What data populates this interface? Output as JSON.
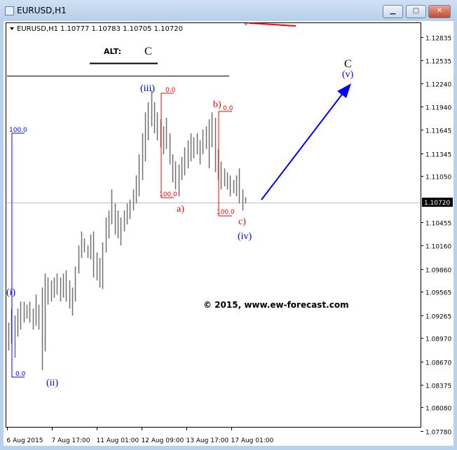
{
  "window": {
    "title": "EURUSD,H1",
    "buttons": {
      "minimize": "▁",
      "maximize": "▢",
      "close": "✕"
    }
  },
  "chart_header": {
    "symbol": "EURUSD,H1",
    "ohlc": "1.10777 1.10783 1.10705 1.10720"
  },
  "alt_label": {
    "text": "ALT:",
    "wave": "C"
  },
  "watermark": "© 2015, www.ew-forecast.com",
  "colors": {
    "bars": "#6e6e6e",
    "wave_blue": "#0000ff",
    "wave_red": "#ff0000",
    "grid_line": "#c0c0c0"
  },
  "chart_data": {
    "type": "bar",
    "ohlc_style": "high-low bars",
    "symbol": "EURUSD",
    "timeframe": "H1",
    "ylim": [
      1.0778,
      1.1306
    ],
    "y_ticks": [
      "1.12835",
      "1.12535",
      "1.12240",
      "1.11940",
      "1.11645",
      "1.11345",
      "1.11050",
      "1.10455",
      "1.10160",
      "1.09860",
      "1.09565",
      "1.09265",
      "1.08970",
      "1.08670",
      "1.08375",
      "1.08080",
      "1.07780"
    ],
    "x_ticks": [
      "6 Aug 2015",
      "7 Aug 17:00",
      "11 Aug 01:00",
      "12 Aug 09:00",
      "13 Aug 17:00",
      "17 Aug 01:00"
    ],
    "current_price": "1.10720",
    "bars": [
      [
        1.0917,
        1.0881
      ],
      [
        1.0935,
        1.089
      ],
      [
        1.0926,
        1.0872
      ],
      [
        1.0935,
        1.0899
      ],
      [
        1.0944,
        1.0908
      ],
      [
        1.0944,
        1.0917
      ],
      [
        1.094,
        1.0922
      ],
      [
        1.0944,
        1.0917
      ],
      [
        1.0935,
        1.0908
      ],
      [
        1.0953,
        1.0913
      ],
      [
        1.094,
        1.0908
      ],
      [
        1.0962,
        1.0856
      ],
      [
        1.098,
        1.088
      ],
      [
        1.0975,
        1.094
      ],
      [
        1.0971,
        1.0944
      ],
      [
        1.0975,
        1.0949
      ],
      [
        1.098,
        1.0953
      ],
      [
        1.0975,
        1.0944
      ],
      [
        1.098,
        1.0949
      ],
      [
        1.0984,
        1.0944
      ],
      [
        1.0971,
        1.0935
      ],
      [
        1.0962,
        1.0926
      ],
      [
        1.0989,
        1.0944
      ],
      [
        1.1016,
        1.098
      ],
      [
        1.1034,
        1.1
      ],
      [
        1.1025,
        1.1007
      ],
      [
        1.1016,
        1.1
      ],
      [
        1.103,
        1.0998
      ],
      [
        1.1034,
        1.0975
      ],
      [
        1.1007,
        1.0971
      ],
      [
        1.1,
        1.0962
      ],
      [
        1.102,
        1.096
      ],
      [
        1.1052,
        1.1007
      ],
      [
        1.1061,
        1.1025
      ],
      [
        1.1088,
        1.1043
      ],
      [
        1.107,
        1.103
      ],
      [
        1.1061,
        1.1025
      ],
      [
        1.1052,
        1.1016
      ],
      [
        1.1061,
        1.1034
      ],
      [
        1.107,
        1.1043
      ],
      [
        1.1075,
        1.105
      ],
      [
        1.1088,
        1.1061
      ],
      [
        1.1106,
        1.107
      ],
      [
        1.1133,
        1.1079
      ],
      [
        1.116,
        1.11
      ],
      [
        1.1187,
        1.1124
      ],
      [
        1.12,
        1.1151
      ],
      [
        1.1215,
        1.1169
      ],
      [
        1.12,
        1.116
      ],
      [
        1.1187,
        1.1151
      ],
      [
        1.1178,
        1.1142
      ],
      [
        1.1169,
        1.1133
      ],
      [
        1.118,
        1.114
      ],
      [
        1.116,
        1.112
      ],
      [
        1.1133,
        1.1097
      ],
      [
        1.1124,
        1.1088
      ],
      [
        1.112,
        1.1079
      ],
      [
        1.113,
        1.11
      ],
      [
        1.1142,
        1.1106
      ],
      [
        1.1151,
        1.1115
      ],
      [
        1.116,
        1.1124
      ],
      [
        1.1155,
        1.1128
      ],
      [
        1.116,
        1.1133
      ],
      [
        1.1151,
        1.112
      ],
      [
        1.1165,
        1.1133
      ],
      [
        1.1169,
        1.114
      ],
      [
        1.1178,
        1.1115
      ],
      [
        1.1187,
        1.1142
      ],
      [
        1.118,
        1.111
      ],
      [
        1.114,
        1.11
      ],
      [
        1.1124,
        1.1088
      ],
      [
        1.1115,
        1.1092
      ],
      [
        1.111,
        1.1088
      ],
      [
        1.1106,
        1.1079
      ],
      [
        1.11,
        1.1083
      ],
      [
        1.1106,
        1.1079
      ],
      [
        1.1115,
        1.107
      ],
      [
        1.1088,
        1.1061
      ],
      [
        1.1078,
        1.107
      ]
    ],
    "wave_labels": [
      "(i)",
      "(ii)",
      "(iii)",
      "a)",
      "b)",
      "c)",
      "(iv)",
      "C",
      "(v)"
    ],
    "fib_levels": {
      "blue_top": "100.0",
      "blue_bottom": "0.0",
      "red1_top": "0.0",
      "red1_bottom": "100.0",
      "red2_top": "0.0",
      "red2_bottom": "100.0"
    }
  }
}
